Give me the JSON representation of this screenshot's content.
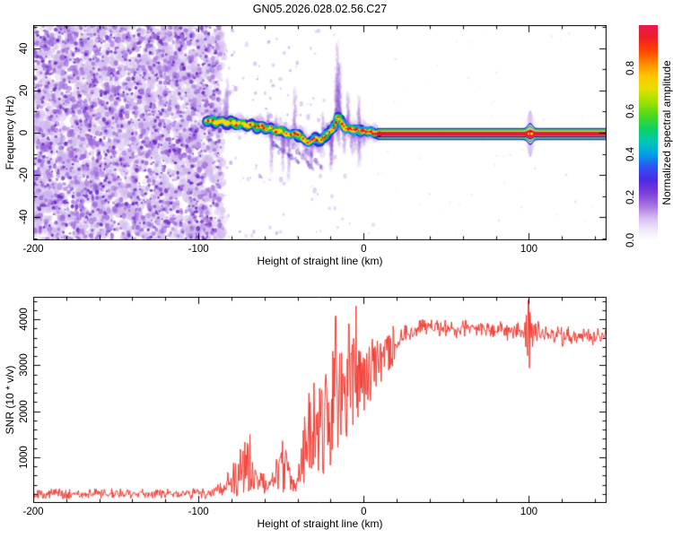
{
  "title": "GN05.2026.028.02.56.C27",
  "chart_data": [
    {
      "type": "heatmap",
      "name": "open-loop spectrogram",
      "xlabel": "Height of straight line (km)",
      "ylabel": "Frequency (Hz)",
      "xlim": [
        -200,
        147
      ],
      "ylim": [
        -51,
        51
      ],
      "xticks": [
        -200,
        -100,
        0,
        100
      ],
      "x_minor_step": 20,
      "yticks": [
        -40,
        -20,
        0,
        20,
        40
      ],
      "y_minor_step": 10,
      "colorbar": {
        "label": "Normalized spectral amplitude",
        "ticks": [
          0,
          0.2,
          0.4,
          0.6,
          0.8
        ],
        "range": [
          0,
          1
        ],
        "gradient": [
          [
            "0.00",
            "#ffffff"
          ],
          [
            "0.05",
            "#f0e6fa"
          ],
          [
            "0.10",
            "#d8c0f0"
          ],
          [
            "0.16",
            "#a873e2"
          ],
          [
            "0.22",
            "#7a3fd6"
          ],
          [
            "0.28",
            "#4b2be4"
          ],
          [
            "0.34",
            "#2d51f2"
          ],
          [
            "0.40",
            "#00a0e8"
          ],
          [
            "0.46",
            "#00c8b4"
          ],
          [
            "0.52",
            "#10d060"
          ],
          [
            "0.58",
            "#4cd81c"
          ],
          [
            "0.64",
            "#9ce000"
          ],
          [
            "0.70",
            "#e0e000"
          ],
          [
            "0.76",
            "#ffc800"
          ],
          [
            "0.82",
            "#ff8c00"
          ],
          [
            "0.88",
            "#ff4400"
          ],
          [
            "0.94",
            "#f01e28"
          ],
          [
            "1.00",
            "#e6194b"
          ]
        ]
      },
      "noise_region": {
        "x_start": -200,
        "x_end": -88
      },
      "signal_trace": {
        "points": [
          [
            -95,
            5.5
          ],
          [
            -92,
            6
          ],
          [
            -89,
            4.5
          ],
          [
            -86,
            6
          ],
          [
            -83,
            4
          ],
          [
            -80,
            5.5
          ],
          [
            -77,
            3.5
          ],
          [
            -74,
            5
          ],
          [
            -71,
            3
          ],
          [
            -68,
            4.2
          ],
          [
            -65,
            2.5
          ],
          [
            -62,
            3.5
          ],
          [
            -59,
            1.5
          ],
          [
            -56,
            2.5
          ],
          [
            -53,
            0.5
          ],
          [
            -50,
            1.2
          ],
          [
            -47,
            -0.5
          ],
          [
            -44,
            -1
          ],
          [
            -41,
            -0.3
          ],
          [
            -38,
            -2
          ],
          [
            -35,
            -4
          ],
          [
            -33,
            -5
          ],
          [
            -31,
            -3.5
          ],
          [
            -29,
            -2.5
          ],
          [
            -27,
            -4
          ],
          [
            -25,
            -3
          ],
          [
            -23,
            -1.5
          ],
          [
            -21,
            0
          ],
          [
            -19,
            1.5
          ],
          [
            -17,
            4.5
          ],
          [
            -15.5,
            8
          ],
          [
            -14,
            5.5
          ],
          [
            -12,
            2.5
          ],
          [
            -10,
            1.5
          ],
          [
            -8,
            2.2
          ],
          [
            -6,
            1
          ],
          [
            -4,
            1.6
          ],
          [
            -2,
            0.6
          ],
          [
            0,
            1.2
          ],
          [
            2,
            0.2
          ],
          [
            4,
            0.8
          ],
          [
            6,
            -0.2
          ],
          [
            8,
            -0.5
          ]
        ]
      },
      "multipath_tails": [
        [
          -55,
          -5,
          -39,
          -14
        ],
        [
          -42,
          -6.5,
          -31,
          -17
        ],
        [
          -35,
          -8,
          -24,
          -18
        ]
      ],
      "flat_band": {
        "x_start": 8,
        "x_end": 147,
        "center_hz": -0.5
      },
      "disturbance_km": 100.5
    },
    {
      "type": "line",
      "name": "snr profile",
      "xlabel": "Height of straight line (km)",
      "ylabel": "SNR (10 * v/v)",
      "xlim": [
        -200,
        147
      ],
      "ylim": [
        0,
        4490
      ],
      "xticks": [
        -200,
        -100,
        0,
        100
      ],
      "x_minor_step": 20,
      "yticks": [
        1000,
        2000,
        3000,
        4000
      ],
      "y_minor_step": 200,
      "line_color": "#f23b32",
      "envelope": [
        [
          -200,
          70,
          330
        ],
        [
          -160,
          70,
          340
        ],
        [
          -130,
          70,
          330
        ],
        [
          -100,
          70,
          350
        ],
        [
          -90,
          80,
          420
        ],
        [
          -85,
          90,
          600
        ],
        [
          -81,
          110,
          900
        ],
        [
          -77,
          130,
          1050
        ],
        [
          -73,
          180,
          1250
        ],
        [
          -69,
          220,
          1620
        ],
        [
          -66,
          180,
          1150
        ],
        [
          -62,
          140,
          850
        ],
        [
          -58,
          110,
          520
        ],
        [
          -55,
          130,
          700
        ],
        [
          -51,
          180,
          1320
        ],
        [
          -48,
          220,
          1480
        ],
        [
          -45,
          180,
          950
        ],
        [
          -42,
          140,
          520
        ],
        [
          -39,
          220,
          900
        ],
        [
          -37,
          350,
          1600
        ],
        [
          -35,
          400,
          2150
        ],
        [
          -32,
          450,
          2600
        ],
        [
          -30,
          500,
          2900
        ],
        [
          -28,
          420,
          2500
        ],
        [
          -26,
          550,
          3100
        ],
        [
          -24,
          650,
          3250
        ],
        [
          -22,
          600,
          2850
        ],
        [
          -20,
          750,
          3400
        ],
        [
          -18,
          850,
          3300
        ],
        [
          -16,
          950,
          3250
        ],
        [
          -14,
          1100,
          3400
        ],
        [
          -12,
          1000,
          3150
        ],
        [
          -10,
          1250,
          3500
        ],
        [
          -8,
          1450,
          3550
        ],
        [
          -6,
          1500,
          3700
        ],
        [
          -4,
          1650,
          3500
        ],
        [
          -2,
          1800,
          3400
        ],
        [
          0,
          1950,
          3450
        ],
        [
          3,
          2100,
          3550
        ],
        [
          6,
          2300,
          3600
        ],
        [
          9,
          2450,
          3700
        ],
        [
          13,
          2650,
          3800
        ],
        [
          17,
          2850,
          3850
        ],
        [
          21,
          3100,
          3900
        ],
        [
          26,
          3350,
          3950
        ],
        [
          31,
          3500,
          4000
        ],
        [
          36,
          3600,
          4050
        ],
        [
          42,
          3600,
          4020
        ],
        [
          50,
          3580,
          4000
        ],
        [
          58,
          3560,
          4020
        ],
        [
          66,
          3600,
          4050
        ],
        [
          74,
          3580,
          4000
        ],
        [
          82,
          3550,
          3980
        ],
        [
          90,
          3520,
          3960
        ],
        [
          96,
          3450,
          3950
        ],
        [
          99,
          3050,
          4380
        ],
        [
          101,
          3100,
          4300
        ],
        [
          103,
          3350,
          4150
        ],
        [
          106,
          3450,
          3950
        ],
        [
          112,
          3420,
          3900
        ],
        [
          120,
          3380,
          3860
        ],
        [
          128,
          3350,
          3830
        ],
        [
          136,
          3380,
          3860
        ],
        [
          146,
          3420,
          3830
        ]
      ],
      "spikes": [
        [
          -17,
          4070
        ],
        [
          -9,
          3900
        ],
        [
          -4.6,
          4290
        ],
        [
          99.6,
          4420
        ],
        [
          100.3,
          2940
        ]
      ]
    }
  ]
}
